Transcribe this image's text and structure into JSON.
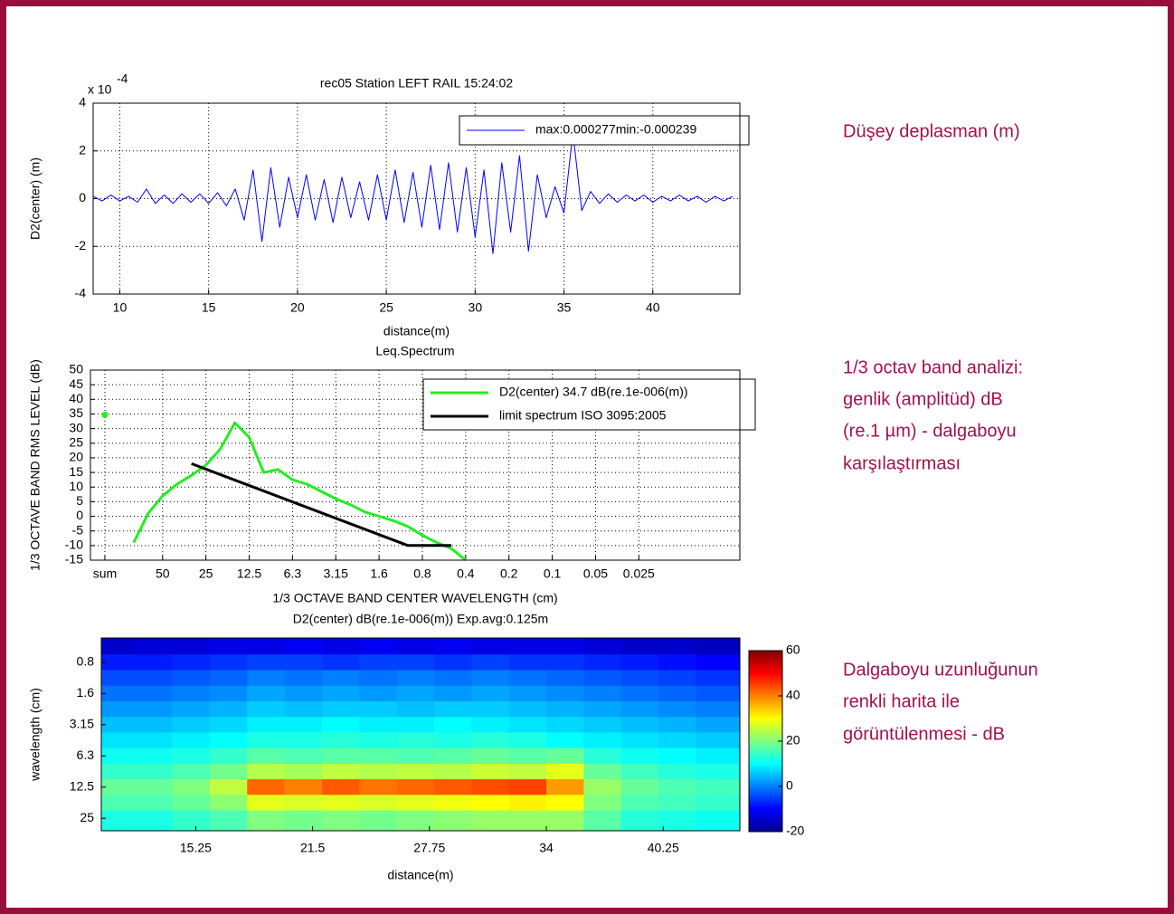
{
  "chart_data": [
    {
      "type": "line",
      "title": "rec05 Station  LEFT RAIL    15:24:02",
      "xlabel": "distance(m)",
      "ylabel": "D2(center) (m)",
      "y_multiplier": "x 10",
      "y_exponent": "-4",
      "xlim": [
        8.5,
        44.9
      ],
      "ylim": [
        -4,
        4
      ],
      "xticks": [
        10,
        15,
        20,
        25,
        30,
        35,
        40
      ],
      "yticks": [
        -4,
        -2,
        0,
        2,
        4
      ],
      "grid": true,
      "series": [
        {
          "name": "max:0.000277min:-0.000239",
          "color": "#0000ff",
          "width": 1,
          "x": [
            8.5,
            9,
            9.5,
            10,
            10.5,
            11,
            11.5,
            12,
            12.5,
            13,
            13.5,
            14,
            14.5,
            15,
            15.5,
            16,
            16.5,
            17,
            17.5,
            18,
            18.5,
            19,
            19.5,
            20,
            20.5,
            21,
            21.5,
            22,
            22.5,
            23,
            23.5,
            24,
            24.5,
            25,
            25.5,
            26,
            26.5,
            27,
            27.5,
            28,
            28.5,
            29,
            29.5,
            30,
            30.5,
            31,
            31.5,
            32,
            32.5,
            33,
            33.5,
            34,
            34.5,
            35,
            35.5,
            36,
            36.5,
            37,
            37.5,
            38,
            38.5,
            39,
            39.5,
            40,
            40.5,
            41,
            41.5,
            42,
            42.5,
            43,
            43.5,
            44,
            44.5
          ],
          "values": [
            0.1,
            -0.1,
            0.15,
            -0.1,
            0.1,
            -0.15,
            0.4,
            -0.2,
            0.15,
            -0.2,
            0.2,
            -0.15,
            0.2,
            -0.2,
            0.25,
            -0.3,
            0.4,
            -0.9,
            1.2,
            -1.8,
            1.3,
            -1.2,
            0.9,
            -0.8,
            1.0,
            -0.9,
            0.8,
            -1.0,
            0.9,
            -0.8,
            0.7,
            -0.9,
            1.0,
            -0.9,
            1.2,
            -1.0,
            1.1,
            -1.2,
            1.4,
            -1.3,
            1.5,
            -1.4,
            1.3,
            -1.6,
            1.2,
            -2.3,
            1.5,
            -1.4,
            1.8,
            -2.2,
            1.0,
            -0.8,
            0.5,
            -0.6,
            2.77,
            -0.5,
            0.3,
            -0.2,
            0.2,
            -0.15,
            0.15,
            -0.1,
            0.15,
            -0.15,
            0.1,
            -0.1,
            0.15,
            -0.1,
            0.1,
            -0.15,
            0.1,
            -0.1,
            0.1
          ]
        }
      ]
    },
    {
      "type": "line",
      "title": "Leq.Spectrum",
      "xlabel": "1/3 OCTAVE BAND CENTER WAVELENGTH (cm)",
      "ylabel": "1/3 OCTAVE BAND RMS LEVEL (dB)",
      "xlim": [
        0,
        45
      ],
      "ylim": [
        -15,
        50
      ],
      "xticks": [
        {
          "value": 1,
          "label": "sum"
        },
        {
          "value": 5,
          "label": "50"
        },
        {
          "value": 8,
          "label": "25"
        },
        {
          "value": 11,
          "label": "12.5"
        },
        {
          "value": 14,
          "label": "6.3"
        },
        {
          "value": 17,
          "label": "3.15"
        },
        {
          "value": 20,
          "label": "1.6"
        },
        {
          "value": 23,
          "label": "0.8"
        },
        {
          "value": 26,
          "label": "0.4"
        },
        {
          "value": 29,
          "label": "0.2"
        },
        {
          "value": 32,
          "label": "0.1"
        },
        {
          "value": 35,
          "label": "0.05"
        },
        {
          "value": 38,
          "label": "0.025"
        }
      ],
      "yticks": [
        -15,
        -10,
        -5,
        0,
        5,
        10,
        15,
        20,
        25,
        30,
        35,
        40,
        45,
        50
      ],
      "grid": true,
      "series": [
        {
          "name": "D2(center)  34.7 dB(re.1e-006(m))",
          "color": "#22ee22",
          "width": 3,
          "x": [
            1,
            2,
            3,
            4,
            5,
            6,
            7,
            8,
            9,
            10,
            11,
            12,
            13,
            14,
            15,
            16,
            17,
            18,
            19,
            20,
            21,
            22,
            23,
            24,
            25,
            26
          ],
          "values": [
            34.7,
            null,
            -9,
            1,
            7,
            11,
            14,
            17.5,
            23,
            32,
            27,
            15,
            16,
            12.5,
            11,
            8.5,
            6,
            4,
            1.5,
            0,
            -1.5,
            -3.5,
            -6.5,
            -9,
            -11,
            -15
          ]
        },
        {
          "name": "limit spectrum ISO 3095:2005",
          "color": "#000000",
          "width": 3,
          "x": [
            7,
            22,
            25
          ],
          "values": [
            18,
            -10,
            -10
          ]
        }
      ]
    },
    {
      "type": "heatmap",
      "title": "D2(center)  dB(re.1e-006(m))     Exp.avg:0.125m",
      "xlabel": "distance(m)",
      "ylabel": "wavelength (cm)",
      "xlim": [
        10.2,
        44.35
      ],
      "ylim": [
        0.22,
        6.4
      ],
      "y_reverse": true,
      "xticks": [
        15.25,
        21.5,
        27.75,
        34,
        40.25
      ],
      "yticks": [
        {
          "value": 1,
          "label": "0.8"
        },
        {
          "value": 2,
          "label": "1.6"
        },
        {
          "value": 3,
          "label": "3.15"
        },
        {
          "value": 4,
          "label": "6.3"
        },
        {
          "value": 5,
          "label": "12.5"
        },
        {
          "value": 6,
          "label": "25"
        }
      ],
      "clim": [
        -20,
        60
      ],
      "cticks": [
        -20,
        0,
        20,
        40,
        60
      ],
      "colormap": "jet",
      "x": [
        11,
        13,
        15,
        17,
        19,
        21,
        23,
        25,
        27,
        29,
        31,
        33,
        35,
        37,
        39,
        41,
        43
      ],
      "y": [
        0.5,
        1,
        1.5,
        2,
        2.5,
        3,
        3.5,
        4,
        4.5,
        5,
        5.5,
        6
      ],
      "z": [
        [
          -14,
          -13,
          -13,
          -12,
          -12,
          -11,
          -12,
          -11,
          -12,
          -11,
          -12,
          -12,
          -12,
          -13,
          -14,
          -14,
          -15
        ],
        [
          -8,
          -8,
          -7,
          -6,
          -5,
          -5,
          -6,
          -5,
          -5,
          -6,
          -5,
          -6,
          -6,
          -7,
          -8,
          -9,
          -10
        ],
        [
          -4,
          -4,
          -3,
          -2,
          0,
          -1,
          0,
          -1,
          0,
          -1,
          0,
          -1,
          -2,
          -3,
          -4,
          -5,
          -6
        ],
        [
          -1,
          -1,
          0,
          1,
          3,
          2,
          3,
          2,
          3,
          2,
          3,
          2,
          1,
          0,
          -1,
          -2,
          -3
        ],
        [
          2,
          2,
          3,
          4,
          6,
          5,
          6,
          6,
          5,
          6,
          6,
          5,
          4,
          3,
          2,
          1,
          0
        ],
        [
          5,
          5,
          6,
          7,
          9,
          9,
          10,
          9,
          9,
          10,
          9,
          8,
          7,
          6,
          5,
          4,
          3
        ],
        [
          8,
          8,
          9,
          10,
          12,
          12,
          13,
          12,
          13,
          12,
          13,
          12,
          10,
          9,
          8,
          7,
          6
        ],
        [
          11,
          11,
          12,
          14,
          17,
          16,
          17,
          17,
          16,
          17,
          18,
          17,
          18,
          13,
          11,
          10,
          9
        ],
        [
          14,
          14,
          16,
          19,
          24,
          23,
          25,
          24,
          25,
          24,
          26,
          25,
          28,
          18,
          15,
          13,
          12
        ],
        [
          18,
          18,
          20,
          25,
          42,
          40,
          43,
          41,
          42,
          43,
          44,
          45,
          38,
          22,
          18,
          16,
          15
        ],
        [
          16,
          16,
          18,
          21,
          28,
          27,
          28,
          27,
          28,
          29,
          30,
          31,
          30,
          20,
          16,
          15,
          14
        ],
        [
          12,
          12,
          14,
          16,
          20,
          19,
          20,
          19,
          20,
          21,
          22,
          22,
          22,
          17,
          13,
          12,
          11
        ]
      ]
    }
  ],
  "captions": [
    {
      "lines": [
        "Düşey deplasman (m)"
      ]
    },
    {
      "lines": [
        "1/3 octav band analizi:",
        "genlik (amplitüd) dB",
        "(re.1 µm) - dalgaboyu",
        "karşılaştırması"
      ]
    },
    {
      "lines": [
        "Dalgaboyu uzunluğunun",
        "renkli harita ile",
        "görüntülenmesi - dB"
      ]
    }
  ]
}
